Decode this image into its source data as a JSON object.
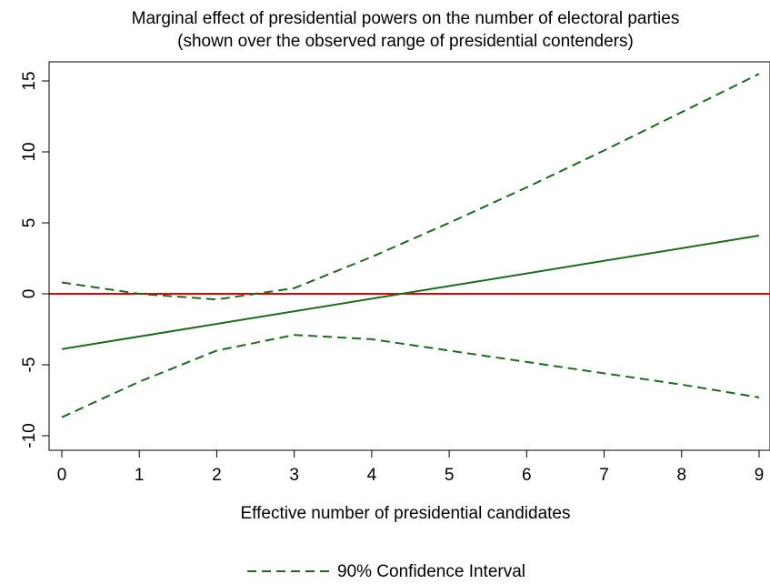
{
  "chart_data": {
    "type": "line",
    "title": "Marginal effect of presidential powers on the number of electoral parties",
    "subtitle": "(shown over the observed range of presidential contenders)",
    "xlabel": "Effective number of presidential candidates",
    "ylabel": "",
    "xlim": [
      0,
      9
    ],
    "ylim": [
      -10,
      15
    ],
    "xticks": [
      "0",
      "1",
      "2",
      "3",
      "4",
      "5",
      "6",
      "7",
      "8",
      "9"
    ],
    "yticks": [
      "-10",
      "-5",
      "0",
      "5",
      "10",
      "15"
    ],
    "grid": false,
    "legend": {
      "placement": "bottom",
      "entries": [
        "90% Confidence Interval"
      ]
    },
    "series": [
      {
        "style": "solid",
        "color": "#1b6b1b",
        "x": [
          0,
          9
        ],
        "y": [
          -3.9,
          4.1
        ]
      },
      {
        "name": "90% Confidence Interval",
        "role": "upper",
        "style": "dashed",
        "color": "#1b6b1b",
        "x": [
          0,
          1,
          2,
          3,
          4,
          5,
          6,
          7,
          8,
          9
        ],
        "y": [
          0.8,
          0.0,
          -0.4,
          0.4,
          2.6,
          5.0,
          7.5,
          10.1,
          12.8,
          15.5
        ]
      },
      {
        "name": "90% Confidence Interval",
        "role": "lower",
        "style": "dashed",
        "color": "#1b6b1b",
        "x": [
          0,
          1,
          2,
          3,
          4,
          5,
          6,
          7,
          8,
          9
        ],
        "y": [
          -8.7,
          -6.2,
          -4.0,
          -2.9,
          -3.2,
          -4.0,
          -4.8,
          -5.6,
          -6.4,
          -7.3
        ]
      }
    ],
    "reference_line": {
      "y": 0,
      "color": "#e00000"
    }
  }
}
